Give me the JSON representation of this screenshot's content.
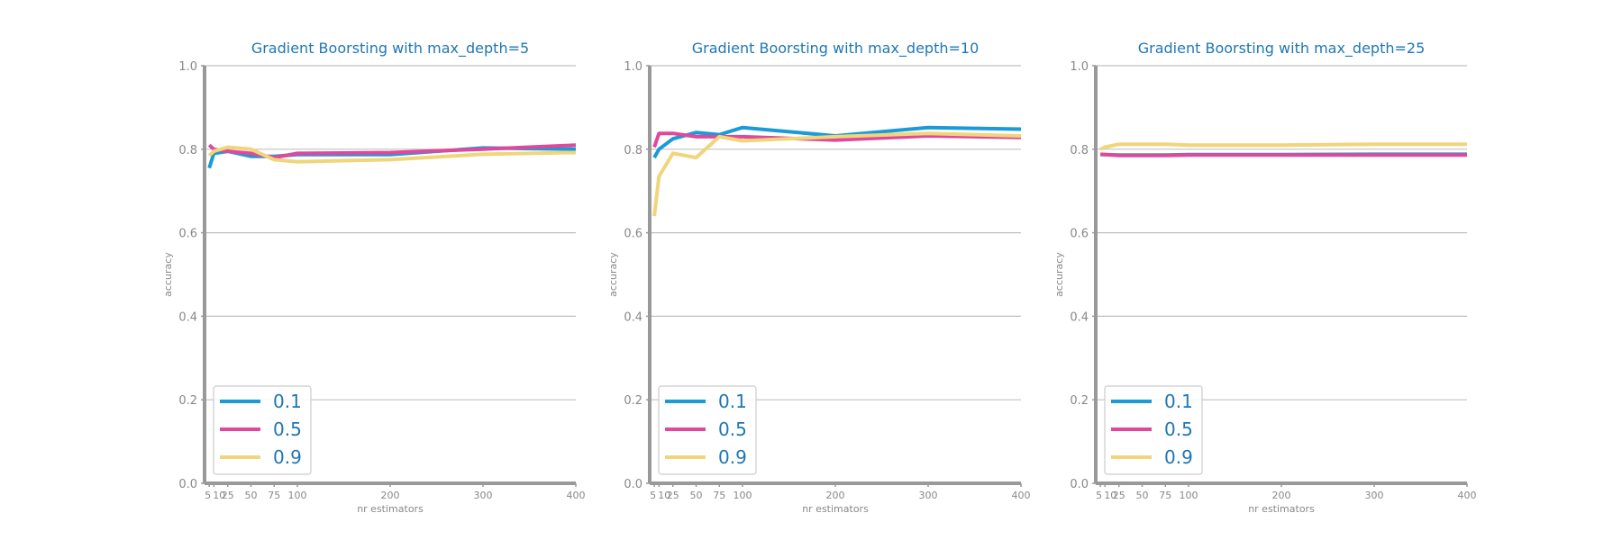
{
  "colors": {
    "title": "#1f77b4",
    "axis": "#999999",
    "grid": "#c0c0c0",
    "tick_text": "#888888",
    "legend_text": "#1f77b4",
    "legend_border": "#cccccc"
  },
  "chart_data": [
    {
      "type": "line",
      "title": "Gradient Boorsting with max_depth=5",
      "xlabel": "nr estimators",
      "ylabel": "accuracy",
      "x": [
        5,
        10,
        25,
        50,
        75,
        100,
        200,
        300,
        400
      ],
      "xticks": [
        "5",
        "10",
        "25",
        "50",
        "75",
        "100",
        "200",
        "300",
        "400"
      ],
      "ylim": [
        0,
        1
      ],
      "yticks": [
        "0.0",
        "0.2",
        "0.4",
        "0.6",
        "0.8",
        "1.0"
      ],
      "grid": "horizontal",
      "legend_position": "lower-left",
      "series": [
        {
          "name": "0.1",
          "color": "#1a9bd7",
          "values": [
            0.755,
            0.79,
            0.795,
            0.783,
            0.783,
            0.787,
            0.787,
            0.803,
            0.8
          ]
        },
        {
          "name": "0.5",
          "color": "#e0489b",
          "values": [
            0.81,
            0.8,
            0.795,
            0.79,
            0.78,
            0.79,
            0.792,
            0.8,
            0.81
          ]
        },
        {
          "name": "0.9",
          "color": "#f0d57a",
          "values": [
            0.785,
            0.795,
            0.805,
            0.8,
            0.775,
            0.77,
            0.775,
            0.788,
            0.792
          ]
        }
      ]
    },
    {
      "type": "line",
      "title": "Gradient Boorsting with max_depth=10",
      "xlabel": "nr estimators",
      "ylabel": "accuracy",
      "x": [
        5,
        10,
        25,
        50,
        75,
        100,
        200,
        300,
        400
      ],
      "xticks": [
        "5",
        "10",
        "25",
        "50",
        "75",
        "100",
        "200",
        "300",
        "400"
      ],
      "ylim": [
        0,
        1
      ],
      "yticks": [
        "0.0",
        "0.2",
        "0.4",
        "0.6",
        "0.8",
        "1.0"
      ],
      "grid": "horizontal",
      "legend_position": "lower-left",
      "series": [
        {
          "name": "0.1",
          "color": "#1a9bd7",
          "values": [
            0.78,
            0.8,
            0.825,
            0.84,
            0.835,
            0.852,
            0.832,
            0.852,
            0.848
          ]
        },
        {
          "name": "0.5",
          "color": "#e0489b",
          "values": [
            0.805,
            0.838,
            0.838,
            0.83,
            0.83,
            0.83,
            0.822,
            0.832,
            0.828
          ]
        },
        {
          "name": "0.9",
          "color": "#f0d57a",
          "values": [
            0.64,
            0.735,
            0.79,
            0.78,
            0.83,
            0.82,
            0.83,
            0.838,
            0.832
          ]
        }
      ]
    },
    {
      "type": "line",
      "title": "Gradient Boorsting with max_depth=25",
      "xlabel": "nr estimators",
      "ylabel": "accuracy",
      "x": [
        5,
        10,
        25,
        50,
        75,
        100,
        200,
        300,
        400
      ],
      "xticks": [
        "5",
        "10",
        "25",
        "50",
        "75",
        "100",
        "200",
        "300",
        "400"
      ],
      "ylim": [
        0,
        1
      ],
      "yticks": [
        "0.0",
        "0.2",
        "0.4",
        "0.6",
        "0.8",
        "1.0"
      ],
      "grid": "horizontal",
      "legend_position": "lower-left",
      "series": [
        {
          "name": "0.1",
          "color": "#1a9bd7",
          "values": [
            0.787,
            0.787,
            0.786,
            0.786,
            0.786,
            0.787,
            0.787,
            0.788,
            0.788
          ]
        },
        {
          "name": "0.5",
          "color": "#e0489b",
          "values": [
            0.788,
            0.787,
            0.785,
            0.785,
            0.785,
            0.786,
            0.786,
            0.786,
            0.786
          ]
        },
        {
          "name": "0.9",
          "color": "#f0d57a",
          "values": [
            0.8,
            0.805,
            0.812,
            0.812,
            0.812,
            0.81,
            0.81,
            0.812,
            0.812
          ]
        }
      ]
    }
  ]
}
